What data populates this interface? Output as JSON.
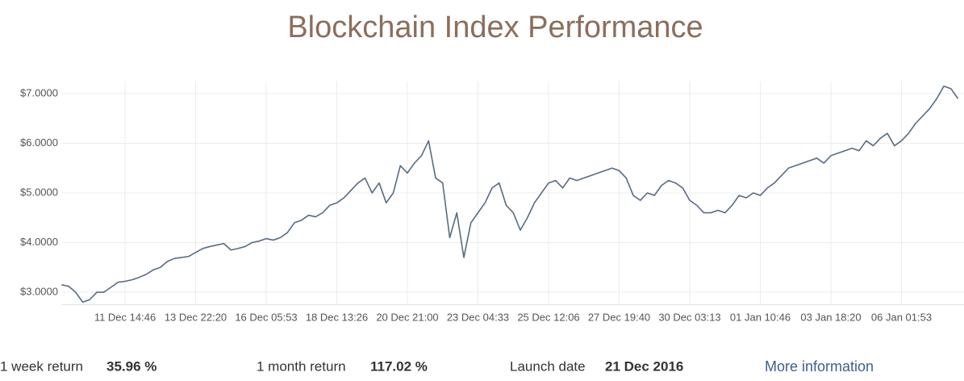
{
  "chart_data": {
    "type": "line",
    "title": "Blockchain Index Performance",
    "color": "#596b82",
    "grid": true,
    "ylim": [
      2.75,
      7.25
    ],
    "yticks": [
      {
        "value": 3,
        "label": "$3.0000"
      },
      {
        "value": 4,
        "label": "$4.0000"
      },
      {
        "value": 5,
        "label": "$5.0000"
      },
      {
        "value": 6,
        "label": "$6.0000"
      },
      {
        "value": 7,
        "label": "$7.0000"
      }
    ],
    "categories": [
      null,
      null,
      null,
      null,
      null,
      null,
      null,
      null,
      null,
      "11 Dec 14:46",
      null,
      null,
      null,
      null,
      null,
      null,
      null,
      null,
      null,
      "13 Dec 22:20",
      null,
      null,
      null,
      null,
      null,
      null,
      null,
      null,
      null,
      "16 Dec 05:53",
      null,
      null,
      null,
      null,
      null,
      null,
      null,
      null,
      null,
      "18 Dec 13:26",
      null,
      null,
      null,
      null,
      null,
      null,
      null,
      null,
      null,
      "20 Dec 21:00",
      null,
      null,
      null,
      null,
      null,
      null,
      null,
      null,
      null,
      "23 Dec 04:33",
      null,
      null,
      null,
      null,
      null,
      null,
      null,
      null,
      null,
      "25 Dec 12:06",
      null,
      null,
      null,
      null,
      null,
      null,
      null,
      null,
      null,
      "27 Dec 19:40",
      null,
      null,
      null,
      null,
      null,
      null,
      null,
      null,
      null,
      "30 Dec 03:13",
      null,
      null,
      null,
      null,
      null,
      null,
      null,
      null,
      null,
      "01 Jan 10:46",
      null,
      null,
      null,
      null,
      null,
      null,
      null,
      null,
      null,
      "03 Jan 18:20",
      null,
      null,
      null,
      null,
      null,
      null,
      null,
      null,
      null,
      "06 Jan 01:53",
      null,
      null,
      null,
      null,
      null,
      null,
      null,
      null
    ],
    "values": [
      3.15,
      3.12,
      3.0,
      2.8,
      2.85,
      3.0,
      3.0,
      3.1,
      3.2,
      3.22,
      3.25,
      3.3,
      3.36,
      3.45,
      3.5,
      3.62,
      3.68,
      3.7,
      3.72,
      3.8,
      3.88,
      3.92,
      3.95,
      3.98,
      3.85,
      3.88,
      3.92,
      4.0,
      4.03,
      4.08,
      4.05,
      4.1,
      4.2,
      4.4,
      4.45,
      4.55,
      4.52,
      4.6,
      4.75,
      4.8,
      4.9,
      5.05,
      5.2,
      5.3,
      5.0,
      5.2,
      4.8,
      5.0,
      5.55,
      5.4,
      5.6,
      5.75,
      6.05,
      5.3,
      5.2,
      4.1,
      4.6,
      3.7,
      4.4,
      4.6,
      4.8,
      5.1,
      5.2,
      4.75,
      4.6,
      4.25,
      4.5,
      4.8,
      5.0,
      5.2,
      5.25,
      5.1,
      5.3,
      5.25,
      5.3,
      5.35,
      5.4,
      5.45,
      5.5,
      5.45,
      5.3,
      4.95,
      4.85,
      5.0,
      4.95,
      5.15,
      5.25,
      5.2,
      5.1,
      4.85,
      4.75,
      4.6,
      4.6,
      4.65,
      4.6,
      4.75,
      4.95,
      4.9,
      5.0,
      4.95,
      5.1,
      5.2,
      5.35,
      5.5,
      5.55,
      5.6,
      5.65,
      5.7,
      5.6,
      5.75,
      5.8,
      5.85,
      5.9,
      5.85,
      6.05,
      5.95,
      6.1,
      6.2,
      5.95,
      6.05,
      6.2,
      6.4,
      6.55,
      6.7,
      6.9,
      7.15,
      7.1,
      6.9
    ]
  },
  "stats": [
    {
      "label": "1 week return",
      "value": "35.96 %"
    },
    {
      "label": "1 month return",
      "value": "117.02 %"
    },
    {
      "label": "Launch date",
      "value": "21 Dec 2016"
    }
  ],
  "link": "More information"
}
